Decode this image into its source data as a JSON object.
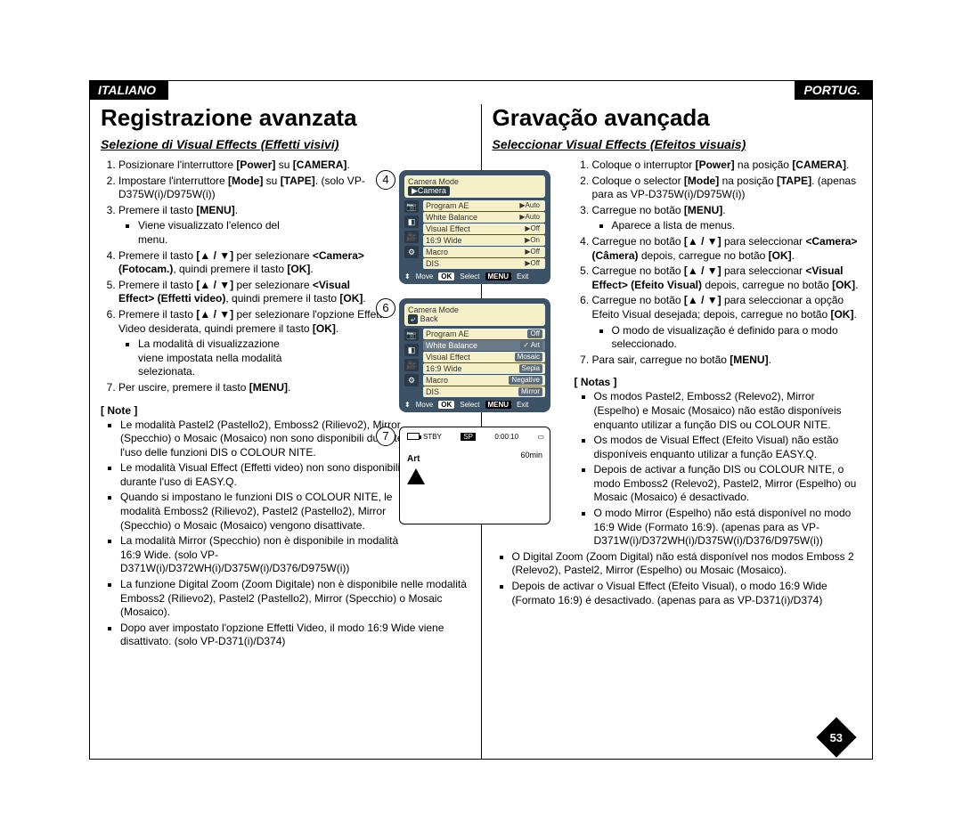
{
  "lang": {
    "left": "ITALIANO",
    "right": "PORTUG."
  },
  "left": {
    "title": "Registrazione avanzata",
    "subtitle": "Selezione di Visual Effects (Effetti visivi)",
    "steps": [
      "Posizionare l'interruttore <b>[Power]</b> su <b>[CAMERA]</b>.",
      "Impostare l'interruttore <b>[Mode]</b> su <b>[TAPE]</b>. (solo VP-D375W(i)/D975W(i))",
      "Premere il tasto <b>[MENU]</b>.",
      "Premere il tasto <b>[▲ / ▼]</b> per selezionare <b>&lt;Camera&gt; (Fotocam.)</b>, quindi premere il tasto <b>[OK]</b>.",
      "Premere il tasto <b>[▲ / ▼]</b> per selezionare <b>&lt;Visual Effect&gt; (Effetti video)</b>, quindi premere il tasto <b>[OK]</b>.",
      "Premere il tasto <b>[▲ / ▼]</b> per selezionare l'opzione Effetti Video desiderata, quindi premere il tasto <b>[OK]</b>.",
      "Per uscire, premere il tasto <b>[MENU]</b>."
    ],
    "step3_sub": "Viene visualizzato l'elenco del menu.",
    "step6_sub": "La modalità di visualizzazione viene impostata nella modalità selezionata.",
    "note_heading": "[ Note ]",
    "notes": [
      "Le modalità Pastel2 (Pastello2), Emboss2 (Rilievo2), Mirror (Specchio) o Mosaic (Mosaico) non sono disponibili durante l'uso delle funzioni DIS o COLOUR NITE.",
      "Le modalità Visual Effect (Effetti video) non sono disponibili durante l'uso di EASY.Q.",
      "Quando si impostano le funzioni DIS o COLOUR NITE, le modalità Emboss2 (Rilievo2), Pastel2 (Pastello2), Mirror (Specchio) o Mosaic (Mosaico) vengono disattivate.",
      "La modalità Mirror (Specchio) non è disponibile in modalità 16:9 Wide. (solo VP-D371W(i)/D372WH(i)/D375W(i)/D376/D975W(i))",
      "La funzione Digital Zoom (Zoom Digitale) non è disponibile nelle modalità Emboss2 (Rilievo2), Pastel2 (Pastello2), Mirror (Specchio) o Mosaic (Mosaico).",
      "Dopo aver impostato l'opzione Effetti Video, il modo 16:9 Wide viene disattivato. (solo VP-D371(i)/D374)"
    ]
  },
  "right": {
    "title": "Gravação avançada",
    "subtitle": "Seleccionar Visual Effects (Efeitos visuais)",
    "steps": [
      "Coloque o interruptor <b>[Power]</b> na posição <b>[CAMERA]</b>.",
      "Coloque o selector <b>[Mode]</b> na posição <b>[TAPE]</b>. (apenas para as VP-D375W(i)/D975W(i))",
      "Carregue no botão <b>[MENU]</b>.",
      "Carregue no botão <b>[▲ / ▼]</b> para seleccionar <b>&lt;Camera&gt; (Câmera)</b> depois, carregue no botão <b>[OK]</b>.",
      "Carregue no botão <b>[▲ / ▼]</b> para seleccionar <b>&lt;Visual Effect&gt; (Efeito Visual)</b> depois, carregue no botão <b>[OK]</b>.",
      "Carregue no botão <b>[▲ / ▼]</b> para seleccionar a opção Efeito Visual desejada; depois, carregue no botão <b>[OK]</b>.",
      "Para sair, carregue no botão <b>[MENU]</b>."
    ],
    "step3_sub": "Aparece a lista de menus.",
    "step6_sub": "O modo de visualização é definido para o modo seleccionado.",
    "note_heading": "[ Notas ]",
    "notes": [
      "Os modos Pastel2, Emboss2 (Relevo2), Mirror (Espelho) e Mosaic (Mosaico) não estão disponíveis enquanto utilizar a função DIS ou COLOUR NITE.",
      "Os modos de Visual Effect (Efeito Visual) não estão disponíveis enquanto utilizar a função EASY.Q.",
      "Depois de activar a função DIS ou COLOUR NITE, o modo Emboss2 (Relevo2), Pastel2, Mirror (Espelho) ou Mosaic (Mosaico) é desactivado.",
      "O modo Mirror (Espelho) não está disponível no modo 16:9 Wide (Formato 16:9). (apenas para as VP-D371W(i)/D372WH(i)/D375W(i)/D376/D975W(i))",
      "O Digital Zoom (Zoom Digital) não está disponível nos modos Emboss 2 (Relevo2), Pastel2, Mirror (Espelho) ou Mosaic (Mosaico).",
      "Depois de activar o Visual Effect (Efeito Visual), o modo 16:9 Wide (Formato 16:9) é desactivado. (apenas para as VP-D371(i)/D374)"
    ]
  },
  "osd4": {
    "header": "Camera Mode",
    "header_sel": "▶Camera",
    "rows": [
      {
        "k": "Program AE",
        "v": "▶Auto"
      },
      {
        "k": "White Balance",
        "v": "▶Auto"
      },
      {
        "k": "Visual Effect",
        "v": "▶Off"
      },
      {
        "k": "16:9 Wide",
        "v": "▶On"
      },
      {
        "k": "Macro",
        "v": "▶Off"
      },
      {
        "k": "DIS",
        "v": "▶Off"
      }
    ],
    "footer": {
      "move": "Move",
      "ok": "OK",
      "select": "Select",
      "menu": "MENU",
      "exit": "Exit"
    }
  },
  "osd6": {
    "header": "Camera Mode",
    "header_back": "Back",
    "rows": [
      {
        "k": "Program AE",
        "v": "Off"
      },
      {
        "k": "White Balance",
        "v": "Art",
        "sel": true
      },
      {
        "k": "Visual Effect",
        "v": "Mosaic"
      },
      {
        "k": "16:9 Wide",
        "v": "Sepia"
      },
      {
        "k": "Macro",
        "v": "Negative"
      },
      {
        "k": "DIS",
        "v": "Mirror"
      }
    ],
    "footer": {
      "move": "Move",
      "ok": "OK",
      "select": "Select",
      "menu": "MENU",
      "exit": "Exit"
    }
  },
  "vf7": {
    "stby": "STBY",
    "sp": "SP",
    "time": "0:00:10",
    "min": "60min",
    "art": "Art"
  },
  "page_number": "53"
}
